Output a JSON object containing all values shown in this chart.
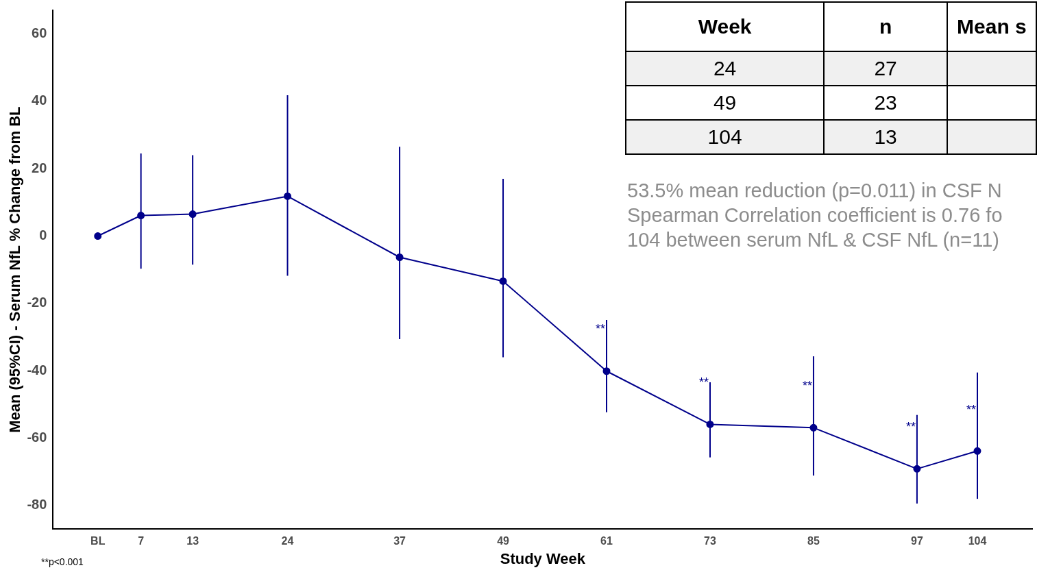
{
  "chart_data": [
    {
      "type": "line",
      "xlabel": "Study Week",
      "ylabel": "Mean (95%CI) - Serum NfL % Change from BL",
      "x": [
        2,
        7,
        13,
        24,
        37,
        49,
        61,
        73,
        85,
        97,
        104
      ],
      "series": [
        {
          "color": "#00008b",
          "values": [
            0,
            6.1,
            6.5,
            11.8,
            -6.3,
            -13.4,
            -40.1,
            -55.9,
            -56.9,
            -69.1,
            -63.8
          ],
          "errors": [
            null,
            [
              -9.7,
              24.5
            ],
            [
              -8.5,
              24
            ],
            [
              -11.8,
              41.8
            ],
            [
              -30.6,
              26.5
            ],
            [
              -36,
              17
            ],
            [
              -52.3,
              -24.9
            ],
            [
              -65.7,
              -43.4
            ],
            [
              -71.1,
              -35.7
            ],
            [
              -79.4,
              -53.1
            ],
            [
              -78,
              -40.5
            ]
          ]
        }
      ],
      "xlim": [
        -3.2,
        110.4
      ],
      "ylim": [
        -87,
        67
      ],
      "xticks": [
        {
          "value": 2,
          "label": "BL"
        },
        7,
        13,
        24,
        37,
        49,
        61,
        73,
        85,
        97,
        104
      ],
      "yticks": [
        -80,
        -60,
        -40,
        -20,
        0,
        20,
        40,
        60
      ],
      "grid": false,
      "legend": false,
      "marker": "circle",
      "line_style": "solid",
      "annotations": [
        {
          "text": "**",
          "x": 61,
          "y": -27.8
        },
        {
          "text": "**",
          "x": 73,
          "y": -43.6
        },
        {
          "text": "**",
          "x": 85,
          "y": -44.6
        },
        {
          "text": "**",
          "x": 97,
          "y": -56.8
        },
        {
          "text": "**",
          "x": 104,
          "y": -51.7
        },
        "53.5% mean reduction (p=0.011) in CSF N",
        "Spearman Correlation coefficient is 0.76 fo",
        "104 between serum NfL & CSF NfL (n=11)",
        "**p<0.001"
      ]
    },
    {
      "type": "other",
      "annotations": [
        "Week",
        "n",
        "Mean s",
        "24",
        "27",
        "49",
        "23",
        "104",
        "13"
      ]
    }
  ]
}
